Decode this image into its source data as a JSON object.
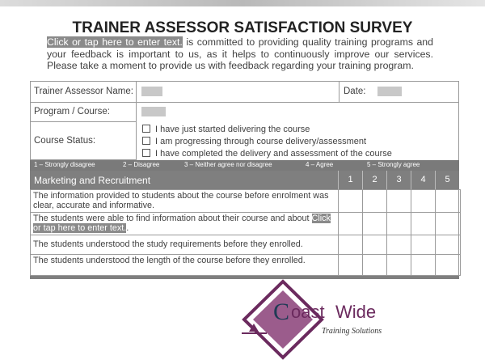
{
  "header": {
    "title": "TRAINER ASSESSOR SATISFACTION SURVEY",
    "placeholder": "Click or tap here to enter text.",
    "intro": " is committed to providing quality training programs and your feedback is important to us, as it helps to continuously improve our services. Please take a moment to provide us with feedback regarding your training program."
  },
  "form": {
    "trainer_label": "Trainer Assessor Name:",
    "date_label": "Date:",
    "program_label": "Program / Course:",
    "status_label": "Course Status:",
    "status_options": [
      "I have just started delivering the course",
      "I am progressing through course delivery/assessment",
      "I have completed the delivery and assessment of the course"
    ]
  },
  "scale": [
    "1 – Strongly disagree",
    "2 – Disagree",
    "3 – Neither agree nor disagree",
    "4 – Agree",
    "5 – Strongly agree"
  ],
  "section": {
    "title": "Marketing and Recruitment",
    "columns": [
      1,
      2,
      3,
      4,
      5
    ]
  },
  "questions": [
    {
      "text": "The information provided to students about the course before enrolment was clear, accurate and informative."
    },
    {
      "text": "The students were able to find information about their course and about ",
      "placeholder": "Click or tap here to enter text.",
      "end": "."
    },
    {
      "text": "The students understood the study requirements before they enrolled."
    },
    {
      "text": "The students understood the length of the course before they enrolled."
    }
  ],
  "logo": {
    "name_start": "C",
    "name_rest": "oast",
    "name_end": "Wide",
    "tagline": "Training Solutions"
  }
}
